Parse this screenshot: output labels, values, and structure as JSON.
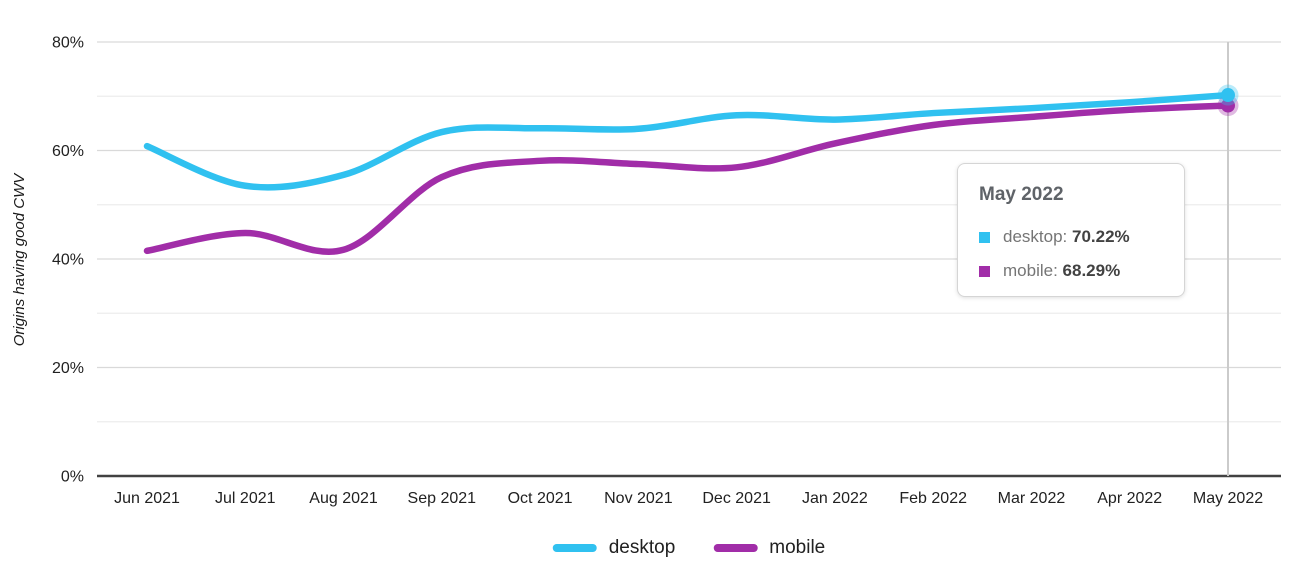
{
  "chart_data": {
    "type": "line",
    "title": "",
    "xlabel": "",
    "ylabel": "Origins having good CWV",
    "ylim": [
      0,
      80
    ],
    "grid": "horizontal major lines every 20%, faint minor lines every 10%",
    "legend_position": "bottom",
    "categories": [
      "Jun 2021",
      "Jul 2021",
      "Aug 2021",
      "Sep 2021",
      "Oct 2021",
      "Nov 2021",
      "Dec 2021",
      "Jan 2022",
      "Feb 2022",
      "Mar 2022",
      "Apr 2022",
      "May 2022"
    ],
    "yticks": [
      {
        "v": 0,
        "label": "0%"
      },
      {
        "v": 10,
        "label": null
      },
      {
        "v": 20,
        "label": "20%"
      },
      {
        "v": 30,
        "label": null
      },
      {
        "v": 40,
        "label": "40%"
      },
      {
        "v": 50,
        "label": null
      },
      {
        "v": 60,
        "label": "60%"
      },
      {
        "v": 70,
        "label": null
      },
      {
        "v": 80,
        "label": "80%"
      }
    ],
    "series": [
      {
        "name": "desktop",
        "color": "#30C1F0",
        "values": [
          60.8,
          53.5,
          55.5,
          63.4,
          64.1,
          64.0,
          66.5,
          65.7,
          66.9,
          67.8,
          68.9,
          70.22
        ]
      },
      {
        "name": "mobile",
        "color": "#A12DA8",
        "values": [
          41.5,
          44.8,
          41.7,
          55.1,
          58.1,
          57.5,
          56.9,
          61.3,
          64.7,
          66.2,
          67.5,
          68.29
        ]
      }
    ],
    "hovered": {
      "category": "May 2022",
      "index": 11
    }
  },
  "tooltip": {
    "title": "May 2022",
    "rows": [
      {
        "series": "desktop",
        "label": "desktop:",
        "value": "70.22%"
      },
      {
        "series": "mobile",
        "label": "mobile:",
        "value": "68.29%"
      }
    ]
  },
  "legend": {
    "items": [
      {
        "label": "desktop"
      },
      {
        "label": "mobile"
      }
    ]
  },
  "colors": {
    "desktop": "#30C1F0",
    "mobile": "#A12DA8",
    "grid_major": "#d9d9d9",
    "grid_minor": "#ededed",
    "axis_line": "#424242",
    "crosshair": "#cbcbcb",
    "axis_text": "#212121",
    "tooltip_title": "#5f6368",
    "tooltip_label": "#757575",
    "tooltip_value": "#424242",
    "background": "#ffffff"
  }
}
